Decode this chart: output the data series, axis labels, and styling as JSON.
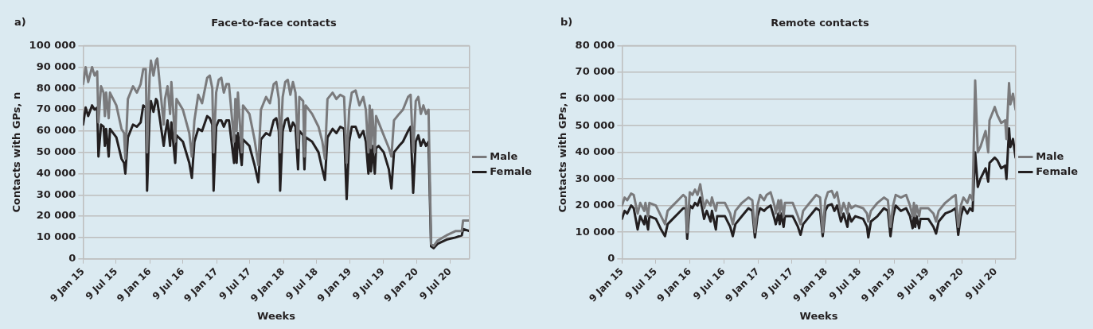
{
  "chart_data": [
    {
      "type": "line",
      "title": "Face-to-face contacts",
      "xlabel": "Weeks",
      "ylabel": "Contacts with GPs, n",
      "annotations": [
        "a)"
      ],
      "legend": "right",
      "grid": "y",
      "xlim": [
        "2015-01-09",
        "2020-10-23"
      ],
      "ylim": [
        0,
        100000
      ],
      "xticks": [
        {
          "value": "2015-01-09",
          "label": "9 Jan 15"
        },
        {
          "value": "2015-07-09",
          "label": "9 Jul 15"
        },
        {
          "value": "2016-01-09",
          "label": "9 Jan 16"
        },
        {
          "value": "2016-07-09",
          "label": "9 Jul 16"
        },
        {
          "value": "2017-01-09",
          "label": "9 Jan 17"
        },
        {
          "value": "2017-07-09",
          "label": "9 Jul 17"
        },
        {
          "value": "2018-01-09",
          "label": "9 Jan 18"
        },
        {
          "value": "2018-07-09",
          "label": "9 Jul 18"
        },
        {
          "value": "2019-01-09",
          "label": "9 Jan 19"
        },
        {
          "value": "2019-07-09",
          "label": "9 Jul 19"
        },
        {
          "value": "2020-01-09",
          "label": "9 Jan 20"
        },
        {
          "value": "2020-07-09",
          "label": "9 Jul 20"
        }
      ],
      "yticks": [
        0,
        {
          "value": 10000,
          "label": "10 000"
        },
        {
          "value": 20000,
          "label": "20 000"
        },
        {
          "value": 30000,
          "label": "30 000"
        },
        {
          "value": 40000,
          "label": "40 000"
        },
        {
          "value": 50000,
          "label": "50 000"
        },
        {
          "value": 60000,
          "label": "60 000"
        },
        {
          "value": 70000,
          "label": "70 000"
        },
        {
          "value": 80000,
          "label": "80 000"
        },
        {
          "value": 90000,
          "label": "90 000"
        },
        {
          "value": 100000,
          "label": "100 000"
        }
      ],
      "x": [
        "2015-01-09",
        "2015-01-23",
        "2015-02-06",
        "2015-02-27",
        "2015-03-13",
        "2015-03-27",
        "2015-04-03",
        "2015-04-17",
        "2015-05-01",
        "2015-05-08",
        "2015-05-15",
        "2015-05-29",
        "2015-06-05",
        "2015-07-10",
        "2015-08-07",
        "2015-08-21",
        "2015-08-28",
        "2015-09-11",
        "2015-10-09",
        "2015-10-30",
        "2015-11-20",
        "2015-12-04",
        "2015-12-18",
        "2015-12-25",
        "2016-01-08",
        "2016-01-15",
        "2016-01-29",
        "2016-02-12",
        "2016-02-19",
        "2016-03-25",
        "2016-04-01",
        "2016-04-15",
        "2016-04-29",
        "2016-05-06",
        "2016-05-27",
        "2016-06-03",
        "2016-07-08",
        "2016-08-12",
        "2016-08-26",
        "2016-09-09",
        "2016-09-30",
        "2016-10-21",
        "2016-11-18",
        "2016-12-02",
        "2016-12-16",
        "2016-12-23",
        "2017-01-06",
        "2017-01-20",
        "2017-02-03",
        "2017-02-17",
        "2017-03-03",
        "2017-03-17",
        "2017-04-14",
        "2017-04-21",
        "2017-04-28",
        "2017-05-05",
        "2017-05-26",
        "2017-06-02",
        "2017-07-07",
        "2017-08-04",
        "2017-08-25",
        "2017-09-08",
        "2017-10-06",
        "2017-10-27",
        "2017-11-17",
        "2017-12-01",
        "2017-12-15",
        "2017-12-22",
        "2018-01-05",
        "2018-01-19",
        "2018-02-02",
        "2018-02-16",
        "2018-03-02",
        "2018-03-16",
        "2018-03-30",
        "2018-04-06",
        "2018-04-27",
        "2018-05-04",
        "2018-05-11",
        "2018-06-15",
        "2018-07-20",
        "2018-08-10",
        "2018-08-24",
        "2018-09-07",
        "2018-10-05",
        "2018-10-26",
        "2018-11-16",
        "2018-12-07",
        "2018-12-21",
        "2019-01-04",
        "2019-01-18",
        "2019-02-08",
        "2019-03-01",
        "2019-03-22",
        "2019-04-05",
        "2019-04-19",
        "2019-04-26",
        "2019-05-03",
        "2019-05-10",
        "2019-05-24",
        "2019-05-31",
        "2019-06-14",
        "2019-07-12",
        "2019-08-09",
        "2019-08-23",
        "2019-09-06",
        "2019-10-04",
        "2019-10-25",
        "2019-11-22",
        "2019-12-06",
        "2019-12-20",
        "2020-01-03",
        "2020-01-17",
        "2020-01-31",
        "2020-02-14",
        "2020-02-28",
        "2020-03-13",
        "2020-03-27",
        "2020-04-10",
        "2020-05-01",
        "2020-06-19",
        "2020-08-07",
        "2020-09-11",
        "2020-09-18",
        "2020-10-23"
      ],
      "series": [
        {
          "name": "Male",
          "color": "#7a7a7c",
          "values": [
            82000,
            90000,
            83000,
            90000,
            86000,
            88000,
            64000,
            81000,
            78000,
            67000,
            78000,
            66000,
            78000,
            72000,
            61000,
            59000,
            47000,
            75000,
            81000,
            78000,
            82000,
            89000,
            89000,
            50000,
            86000,
            93000,
            86000,
            93000,
            94000,
            63000,
            75000,
            81000,
            68000,
            83000,
            55000,
            75000,
            70000,
            59000,
            48000,
            65000,
            77000,
            73000,
            85000,
            86000,
            80000,
            50000,
            78000,
            84000,
            85000,
            78000,
            82000,
            82000,
            55000,
            75000,
            60000,
            78000,
            50000,
            72000,
            68000,
            56000,
            44000,
            70000,
            76000,
            73000,
            82000,
            83000,
            75000,
            50000,
            76000,
            83000,
            84000,
            77000,
            83000,
            78000,
            52000,
            76000,
            74000,
            48000,
            72000,
            68000,
            62000,
            55000,
            47000,
            75000,
            78000,
            75000,
            77000,
            76000,
            45000,
            70000,
            78000,
            79000,
            72000,
            76000,
            70000,
            50000,
            72000,
            52000,
            70000,
            50000,
            67000,
            64000,
            58000,
            52000,
            48000,
            65000,
            68000,
            70000,
            76000,
            77000,
            50000,
            74000,
            76000,
            68000,
            72000,
            68000,
            70000,
            7000,
            6000,
            8500,
            11000,
            13000,
            13000,
            18000,
            18000
          ]
        },
        {
          "name": "Female",
          "color": "#231f20",
          "values": [
            63000,
            71000,
            67000,
            72000,
            70000,
            71000,
            48000,
            63000,
            62000,
            53000,
            61000,
            48000,
            61000,
            57000,
            47000,
            45000,
            40000,
            57000,
            63000,
            62000,
            64000,
            72000,
            71000,
            32000,
            68000,
            74000,
            69000,
            75000,
            74000,
            53000,
            58000,
            65000,
            53000,
            64000,
            45000,
            58000,
            55000,
            45000,
            38000,
            55000,
            61000,
            60000,
            67000,
            66000,
            63000,
            32000,
            62000,
            65000,
            65000,
            62000,
            65000,
            65000,
            45000,
            58000,
            45000,
            59000,
            44000,
            56000,
            53000,
            44000,
            36000,
            56000,
            59000,
            58000,
            65000,
            66000,
            60000,
            32000,
            60000,
            65000,
            66000,
            60000,
            64000,
            62000,
            42000,
            60000,
            58000,
            42000,
            57000,
            55000,
            50000,
            42000,
            37000,
            57000,
            61000,
            59000,
            62000,
            61000,
            28000,
            55000,
            62000,
            62000,
            57000,
            60000,
            55000,
            40000,
            54000,
            41000,
            53000,
            40000,
            52000,
            53000,
            50000,
            42000,
            33000,
            50000,
            53000,
            55000,
            60000,
            62000,
            31000,
            55000,
            58000,
            53000,
            56000,
            53000,
            55000,
            5800,
            5000,
            7000,
            9000,
            10000,
            11000,
            14000,
            13000
          ]
        }
      ]
    },
    {
      "type": "line",
      "title": "Remote contacts",
      "xlabel": "Weeks",
      "ylabel": "Contacts with GPs, n",
      "annotations": [
        "b)"
      ],
      "legend": "right",
      "grid": "y",
      "xlim": [
        "2015-01-09",
        "2020-10-23"
      ],
      "ylim": [
        0,
        80000
      ],
      "xticks": [
        {
          "value": "2015-01-09",
          "label": "9 Jan 15"
        },
        {
          "value": "2015-07-09",
          "label": "9 Jul 15"
        },
        {
          "value": "2016-01-09",
          "label": "9 Jan 16"
        },
        {
          "value": "2016-07-09",
          "label": "9 Jul 16"
        },
        {
          "value": "2017-01-09",
          "label": "9 Jan 17"
        },
        {
          "value": "2017-07-09",
          "label": "9 Jul 17"
        },
        {
          "value": "2018-01-09",
          "label": "9 Jan 18"
        },
        {
          "value": "2018-07-09",
          "label": "9 Jul 18"
        },
        {
          "value": "2019-01-09",
          "label": "9 Jan 19"
        },
        {
          "value": "2019-07-09",
          "label": "9 Jul 19"
        },
        {
          "value": "2020-01-09",
          "label": "9 Jan 20"
        },
        {
          "value": "2020-07-09",
          "label": "9 Jul 20"
        }
      ],
      "yticks": [
        0,
        {
          "value": 10000,
          "label": "10 000"
        },
        {
          "value": 20000,
          "label": "20 000"
        },
        {
          "value": 30000,
          "label": "30 000"
        },
        {
          "value": 40000,
          "label": "40 000"
        },
        {
          "value": 50000,
          "label": "50 000"
        },
        {
          "value": 60000,
          "label": "60 000"
        },
        {
          "value": 70000,
          "label": "70 000"
        },
        {
          "value": 80000,
          "label": "80 000"
        }
      ],
      "x": [
        "2015-01-09",
        "2015-01-23",
        "2015-02-06",
        "2015-02-27",
        "2015-03-13",
        "2015-04-03",
        "2015-04-17",
        "2015-05-08",
        "2015-05-15",
        "2015-05-29",
        "2015-06-05",
        "2015-07-10",
        "2015-08-07",
        "2015-08-28",
        "2015-09-11",
        "2015-10-09",
        "2015-11-06",
        "2015-12-04",
        "2015-12-18",
        "2015-12-25",
        "2016-01-08",
        "2016-01-22",
        "2016-02-05",
        "2016-02-19",
        "2016-03-04",
        "2016-03-25",
        "2016-04-08",
        "2016-04-29",
        "2016-05-06",
        "2016-05-27",
        "2016-06-03",
        "2016-07-15",
        "2016-08-12",
        "2016-08-26",
        "2016-09-09",
        "2016-10-14",
        "2016-11-18",
        "2016-12-09",
        "2016-12-23",
        "2017-01-06",
        "2017-01-20",
        "2017-02-10",
        "2017-02-24",
        "2017-03-17",
        "2017-04-07",
        "2017-04-14",
        "2017-04-28",
        "2017-05-05",
        "2017-05-12",
        "2017-05-26",
        "2017-06-02",
        "2017-07-14",
        "2017-08-11",
        "2017-08-25",
        "2017-09-08",
        "2017-10-13",
        "2017-11-17",
        "2017-12-08",
        "2017-12-22",
        "2018-01-05",
        "2018-01-19",
        "2018-02-09",
        "2018-02-23",
        "2018-03-09",
        "2018-03-30",
        "2018-04-13",
        "2018-05-04",
        "2018-05-11",
        "2018-05-25",
        "2018-06-15",
        "2018-07-27",
        "2018-08-17",
        "2018-08-24",
        "2018-09-07",
        "2018-10-12",
        "2018-11-16",
        "2018-12-07",
        "2018-12-21",
        "2019-01-04",
        "2019-01-18",
        "2019-02-15",
        "2019-03-15",
        "2019-04-05",
        "2019-04-19",
        "2019-04-26",
        "2019-05-03",
        "2019-05-10",
        "2019-05-24",
        "2019-05-31",
        "2019-07-12",
        "2019-08-09",
        "2019-08-23",
        "2019-09-06",
        "2019-10-11",
        "2019-11-15",
        "2019-12-06",
        "2019-12-20",
        "2020-01-03",
        "2020-01-17",
        "2020-02-07",
        "2020-02-21",
        "2020-03-06",
        "2020-03-20",
        "2020-04-03",
        "2020-04-17",
        "2020-05-15",
        "2020-05-29",
        "2020-06-05",
        "2020-07-03",
        "2020-07-17",
        "2020-08-07",
        "2020-08-28",
        "2020-09-04",
        "2020-09-18",
        "2020-09-25",
        "2020-10-09",
        "2020-10-23"
      ],
      "series": [
        {
          "name": "Male",
          "color": "#7a7a7c",
          "values": [
            20000,
            23000,
            22000,
            24500,
            24000,
            17000,
            21000,
            18000,
            21000,
            16000,
            21000,
            20000,
            16000,
            13000,
            18000,
            20000,
            22000,
            24000,
            23000,
            10000,
            25000,
            24000,
            26000,
            24000,
            28000,
            19000,
            22000,
            20000,
            23000,
            18000,
            21000,
            21000,
            17000,
            13000,
            18000,
            21000,
            23000,
            22000,
            10000,
            20000,
            24000,
            22000,
            24000,
            25000,
            20000,
            17000,
            22000,
            17000,
            22000,
            16000,
            21000,
            21000,
            16000,
            13000,
            18000,
            21000,
            24000,
            23000,
            10000,
            22000,
            25000,
            25500,
            23000,
            25000,
            17000,
            21000,
            17000,
            21000,
            19000,
            20000,
            19000,
            17000,
            14000,
            18000,
            21000,
            23000,
            22000,
            12000,
            20000,
            24000,
            23000,
            24000,
            20000,
            16000,
            21000,
            16000,
            20000,
            16000,
            19000,
            19000,
            17000,
            14000,
            18000,
            21000,
            23000,
            24000,
            12000,
            20000,
            23000,
            21000,
            24000,
            22000,
            67000,
            40000,
            42000,
            48000,
            40000,
            52000,
            57000,
            54000,
            51000,
            52000,
            45000,
            66000,
            58000,
            62000,
            56000
          ]
        },
        {
          "name": "Female",
          "color": "#231f20",
          "values": [
            15000,
            18000,
            17000,
            20000,
            19000,
            11000,
            16000,
            13000,
            16000,
            11000,
            16000,
            15000,
            11000,
            8500,
            13000,
            15000,
            17000,
            19000,
            19000,
            7500,
            20000,
            19000,
            21000,
            20000,
            23000,
            15000,
            18000,
            14000,
            18000,
            11000,
            16000,
            16000,
            12000,
            8500,
            13000,
            16000,
            19000,
            18000,
            8000,
            16000,
            19000,
            18000,
            19000,
            20000,
            15000,
            13000,
            17000,
            13000,
            17000,
            12000,
            16000,
            16000,
            12000,
            9000,
            13000,
            16000,
            19000,
            18000,
            8500,
            18000,
            20000,
            20500,
            18000,
            20000,
            14000,
            17000,
            12000,
            17000,
            14000,
            16000,
            15000,
            12000,
            8000,
            14000,
            16000,
            19000,
            18000,
            8500,
            16000,
            20000,
            18000,
            19000,
            16000,
            11500,
            16000,
            12000,
            16000,
            11500,
            15000,
            15000,
            12000,
            9500,
            14000,
            17000,
            18000,
            19000,
            9000,
            16000,
            19500,
            17000,
            19000,
            18000,
            40000,
            27000,
            30000,
            34000,
            29000,
            36000,
            38000,
            37000,
            34000,
            35000,
            30000,
            49000,
            42000,
            45000,
            38000
          ]
        }
      ]
    }
  ]
}
